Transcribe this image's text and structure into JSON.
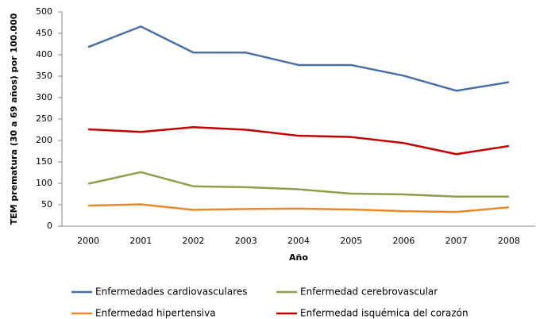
{
  "chart_data": {
    "type": "line",
    "x_label": "Año",
    "y_label": "TEM prematura (30 a 69 años) por 100.000",
    "categories": [
      "2000",
      "2001",
      "2002",
      "2003",
      "2004",
      "2005",
      "2006",
      "2007",
      "2008"
    ],
    "series": [
      {
        "name": "Enfermedades cardiovasculares",
        "color": "#4a6fa5",
        "values": [
          418,
          466,
          405,
          405,
          376,
          376,
          351,
          316,
          336
        ]
      },
      {
        "name": "Enfermedad cerebrovascular",
        "color": "#8aa04a",
        "values": [
          99,
          126,
          93,
          91,
          86,
          76,
          74,
          69,
          69
        ]
      },
      {
        "name": "Enfermedad hipertensiva",
        "color": "#e8892a",
        "values": [
          48,
          51,
          38,
          40,
          41,
          39,
          35,
          33,
          44
        ]
      },
      {
        "name": "Enfermedad isquémica del corazón",
        "color": "#c00000",
        "values": [
          226,
          220,
          231,
          225,
          211,
          208,
          194,
          168,
          187
        ]
      }
    ],
    "ylim": [
      0,
      500
    ],
    "yticks": [
      0,
      50,
      100,
      150,
      200,
      250,
      300,
      350,
      400,
      450,
      500
    ],
    "grid": false,
    "legend": "bottom"
  }
}
